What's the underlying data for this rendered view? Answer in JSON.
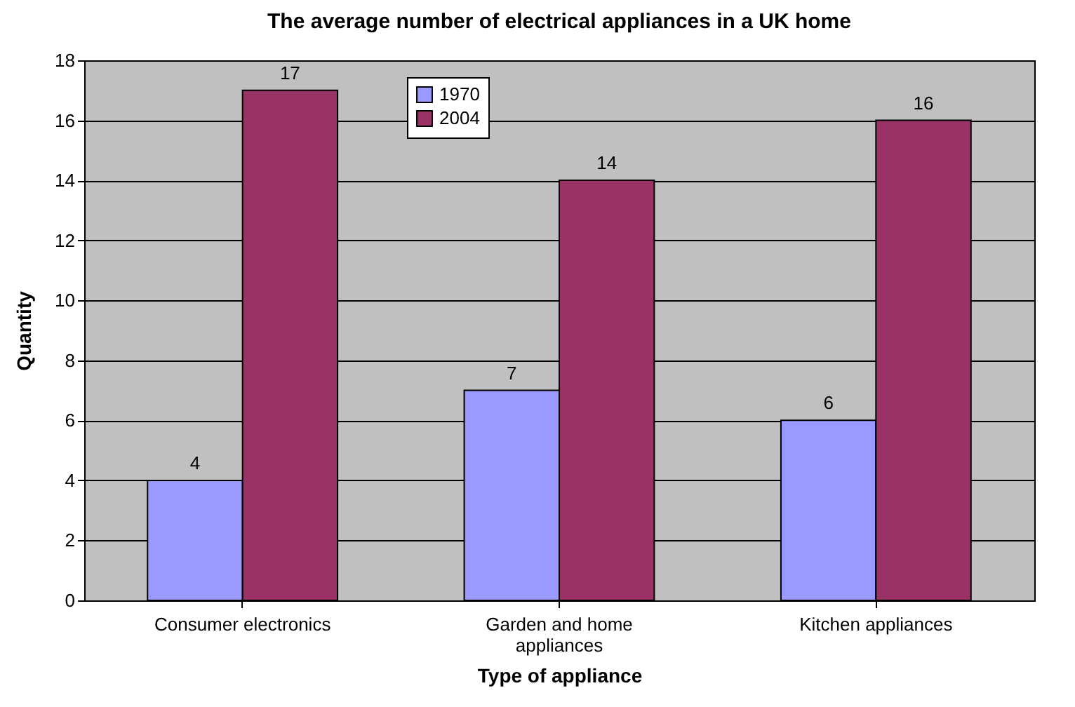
{
  "chart_data": {
    "type": "bar",
    "title": "The average number of electrical appliances in a UK home",
    "xlabel": "Type of appliance",
    "ylabel": "Quantity",
    "categories": [
      "Consumer electronics",
      "Garden and home appliances",
      "Kitchen appliances"
    ],
    "series": [
      {
        "name": "1970",
        "color": "#9999ff",
        "values": [
          4,
          7,
          6
        ]
      },
      {
        "name": "2004",
        "color": "#993366",
        "values": [
          17,
          14,
          16
        ]
      }
    ],
    "ylim": [
      0,
      18
    ],
    "yticks": [
      0,
      2,
      4,
      6,
      8,
      10,
      12,
      14,
      16,
      18
    ],
    "grid": "y",
    "legend": "top",
    "data_labels": true
  }
}
